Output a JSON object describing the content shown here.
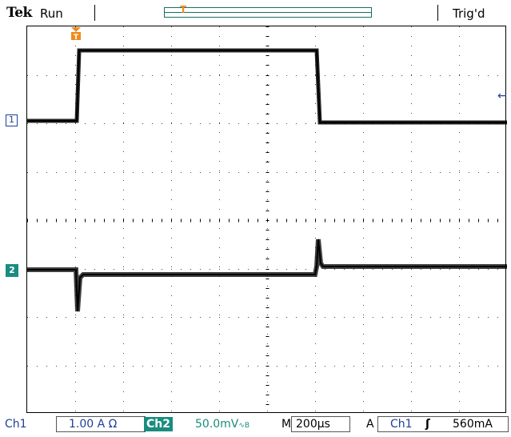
{
  "header": {
    "brand": "Tek",
    "acq_state": "Run",
    "trigger_status": "Trig'd"
  },
  "channels": {
    "ch1": {
      "marker_label": "1",
      "color": "#1f3f9a"
    },
    "ch2": {
      "marker_label": "2",
      "color": "#1a8c80"
    }
  },
  "trigger_marker_label": "T",
  "trigger_level_marker": "←",
  "status": {
    "ch1_label": "Ch1",
    "ch1_scale": "1.00 A Ω",
    "ch2_label": "Ch2",
    "ch2_scale": "50.0mV",
    "ch2_bw_icon": "∿B",
    "timebase_label": "M",
    "timebase": "200µs",
    "trigger_mode": "A",
    "trigger_source": "Ch1",
    "trigger_slope": "ʃ",
    "trigger_level": "560mA"
  }
}
